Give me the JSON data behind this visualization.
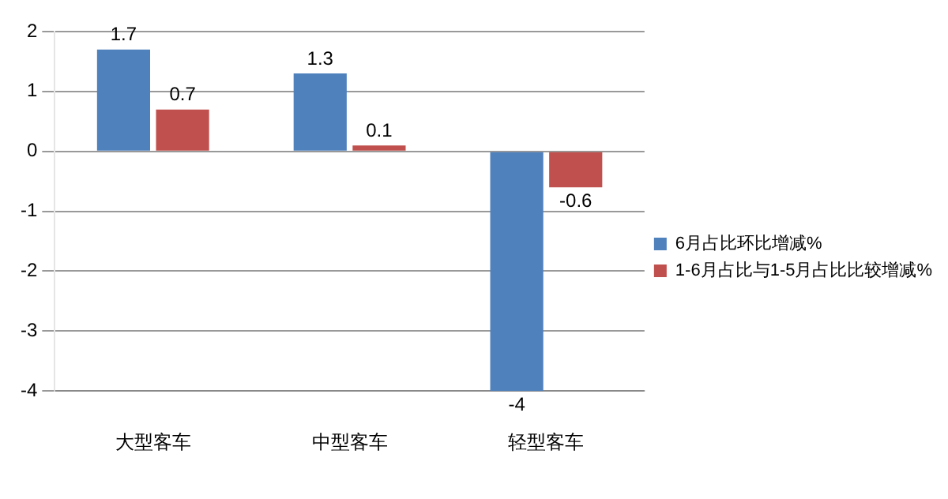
{
  "chart_data": {
    "type": "bar",
    "categories": [
      "大型客车",
      "中型客车",
      "轻型客车"
    ],
    "series": [
      {
        "name": "6月占比环比增减%",
        "color": "#4f81bd",
        "values": [
          1.7,
          1.3,
          -4
        ]
      },
      {
        "name": "1-6月占比与1-5月占比比较增减%",
        "color": "#c0504d",
        "values": [
          0.7,
          0.1,
          -0.6
        ]
      }
    ],
    "ylim": [
      -4,
      2
    ],
    "yticks": [
      -4,
      -3,
      -2,
      -1,
      0,
      1,
      2
    ],
    "grid": "y",
    "legend": "right",
    "data_labels": true
  }
}
